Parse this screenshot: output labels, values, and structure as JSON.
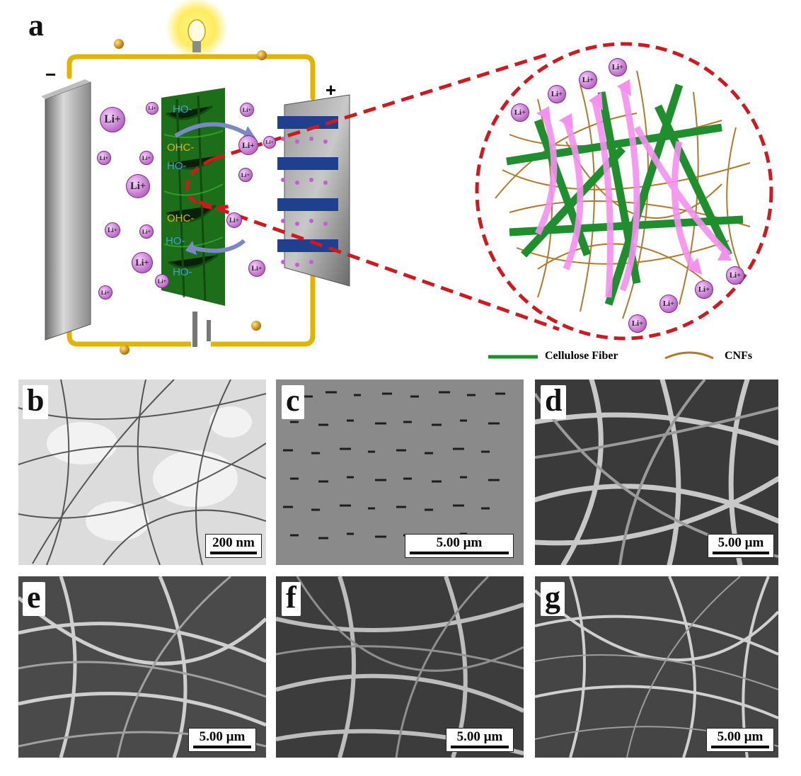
{
  "panels": {
    "a": {
      "letter": "a",
      "minus_sign": "−",
      "plus_sign": "+",
      "separator_groups": [
        "HO-",
        "OHC-",
        "HO-",
        "OHC-",
        "HO-",
        "HO-"
      ],
      "ion_label": "Li+",
      "legend": [
        {
          "label": "Cellulose Fiber",
          "color": "#1f8f2e"
        },
        {
          "label": "CNFs",
          "color": "#b07a2a"
        }
      ]
    },
    "b": {
      "letter": "b",
      "scale": "200 nm"
    },
    "c": {
      "letter": "c",
      "scale": "5.00 µm"
    },
    "d": {
      "letter": "d",
      "scale": "5.00 µm"
    },
    "e": {
      "letter": "e",
      "scale": "5.00 µm"
    },
    "f": {
      "letter": "f",
      "scale": "5.00 µm"
    },
    "g": {
      "letter": "g",
      "scale": "5.00 µm"
    }
  },
  "colors": {
    "wire": "#e0b400",
    "cellulose": "#1f8f2e",
    "cnf": "#b07a2a",
    "dash": "#d0191e",
    "ion": "#c86bd6",
    "arrow": "#f58ff0"
  }
}
